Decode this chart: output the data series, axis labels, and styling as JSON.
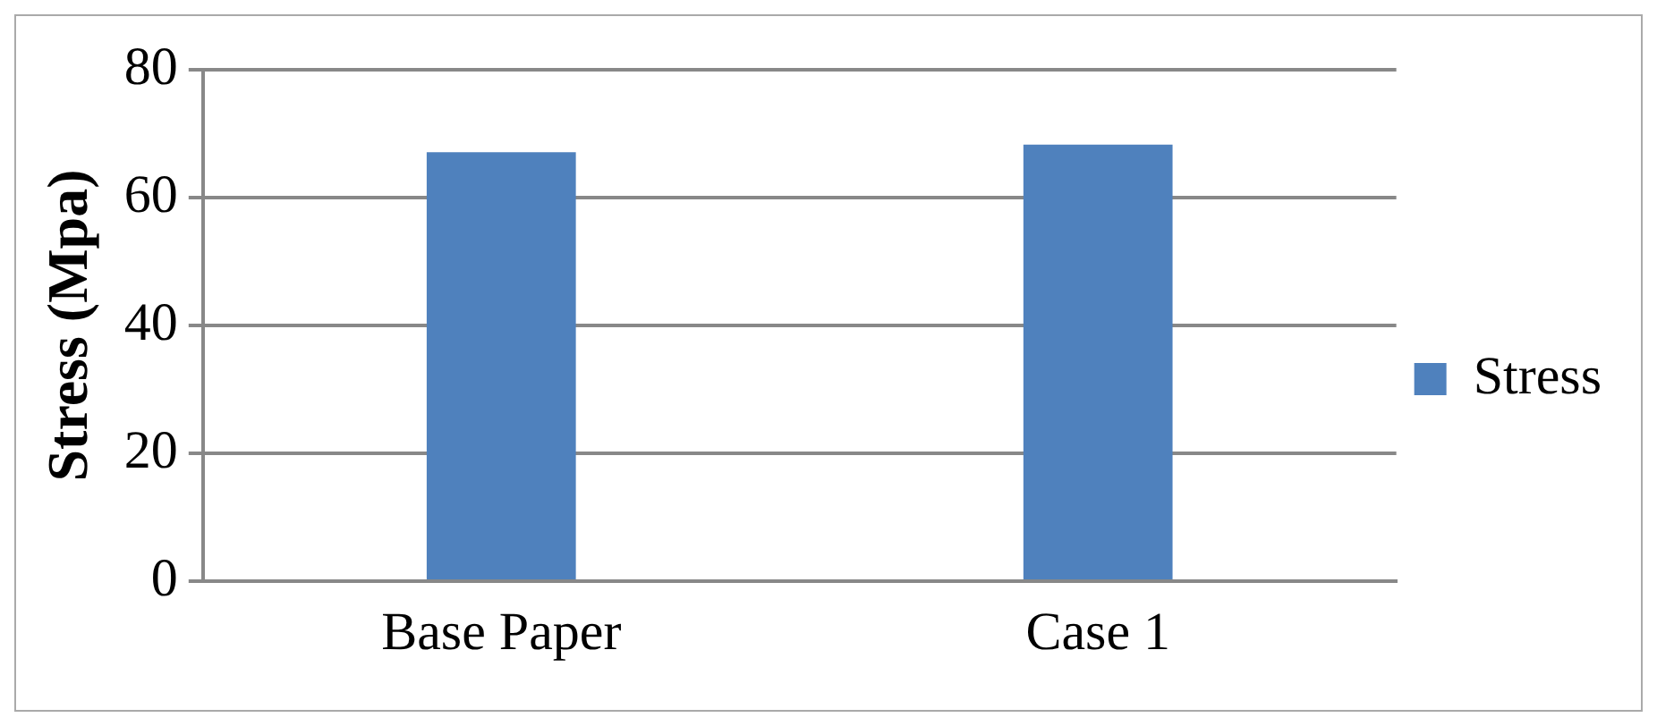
{
  "chart_data": {
    "type": "bar",
    "ylabel": "Stress (Mpa)",
    "categories": [
      "Base Paper",
      "Case 1"
    ],
    "series": [
      {
        "name": "Stress",
        "color": "#4f81bd",
        "values": [
          67.1,
          68.3
        ]
      }
    ],
    "ylim": [
      0,
      80
    ],
    "yticks": [
      0,
      20,
      40,
      60,
      80
    ],
    "grid": "y",
    "legend": "right"
  }
}
